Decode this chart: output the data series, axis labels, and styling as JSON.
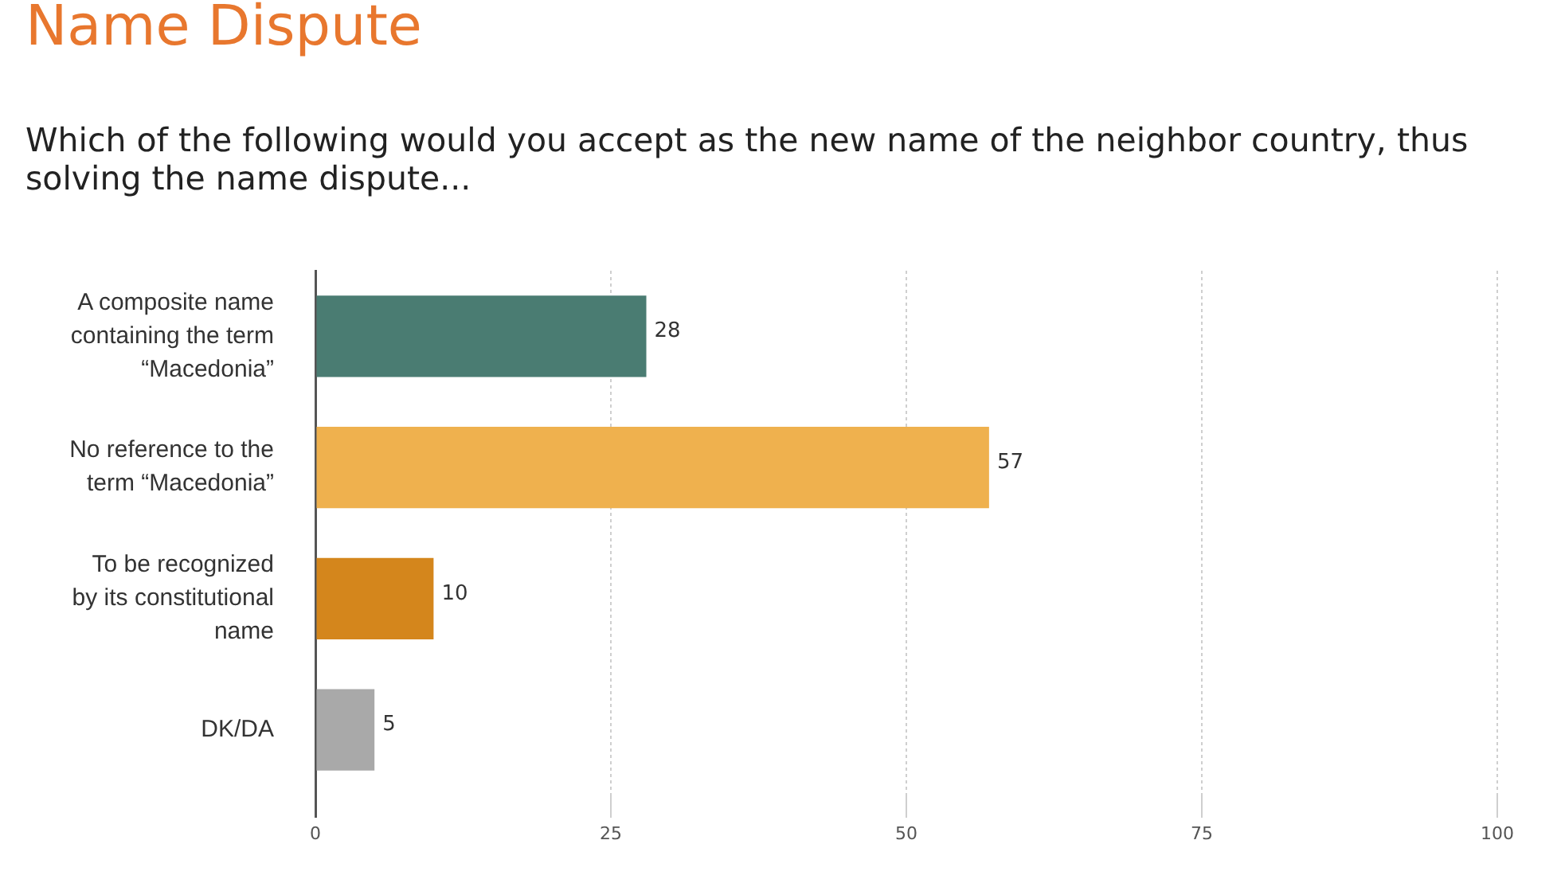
{
  "chart_data": {
    "type": "bar",
    "orientation": "horizontal",
    "title": "Name Dispute",
    "subtitle": "Which of the following would you accept as the new name of the neighbor country, thus solving the name dispute...",
    "categories": [
      "A composite name containing the term “Macedonia”",
      "No reference to the term “Macedonia”",
      "To be recognized by its constitutional name",
      "DK/DA"
    ],
    "values": [
      28,
      57,
      10,
      5
    ],
    "colors": [
      "#4a7c72",
      "#efb14e",
      "#d4861c",
      "#a9a9a9"
    ],
    "xlim": [
      0,
      100
    ],
    "xticks": [
      0,
      25,
      50,
      75,
      100
    ],
    "grid": "x",
    "data_labels": true
  }
}
